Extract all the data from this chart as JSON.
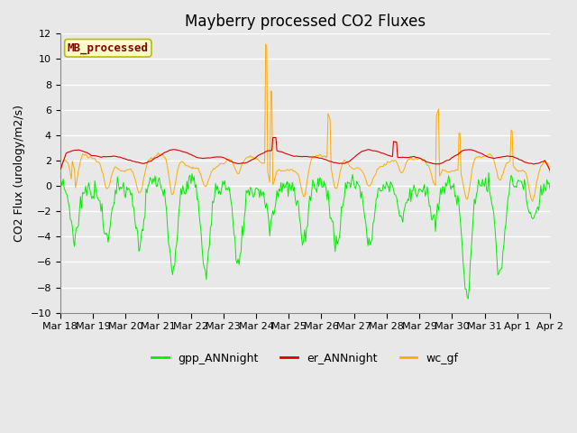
{
  "title": "Mayberry processed CO2 Fluxes",
  "ylabel": "CO2 Flux (urology/m2/s)",
  "ylim": [
    -10,
    12
  ],
  "yticks": [
    -10,
    -8,
    -6,
    -4,
    -2,
    0,
    2,
    4,
    6,
    8,
    10,
    12
  ],
  "background_color": "#e8e8e8",
  "plot_bg_color": "#e8e8e8",
  "grid_color": "#ffffff",
  "legend_label": "MB_processed",
  "legend_text_color": "#8B0000",
  "legend_bg": "#ffffcc",
  "legend_border": "#bbbb00",
  "line_colors": {
    "gpp": "#00ee00",
    "er": "#dd0000",
    "wc": "#ffaa00"
  },
  "line_labels": {
    "gpp": "gpp_ANNnight",
    "er": "er_ANNnight",
    "wc": "wc_gf"
  },
  "n_points": 480,
  "seed": 7,
  "xticklabels": [
    "Mar 18",
    "Mar 19",
    "Mar 20",
    "Mar 21",
    "Mar 22",
    "Mar 23",
    "Mar 24",
    "Mar 25",
    "Mar 26",
    "Mar 27",
    "Mar 28",
    "Mar 29",
    "Mar 30",
    "Mar 31",
    "Apr 1",
    "Apr 2"
  ],
  "title_fontsize": 12,
  "axis_fontsize": 9,
  "tick_fontsize": 8,
  "legend_fontsize": 9
}
